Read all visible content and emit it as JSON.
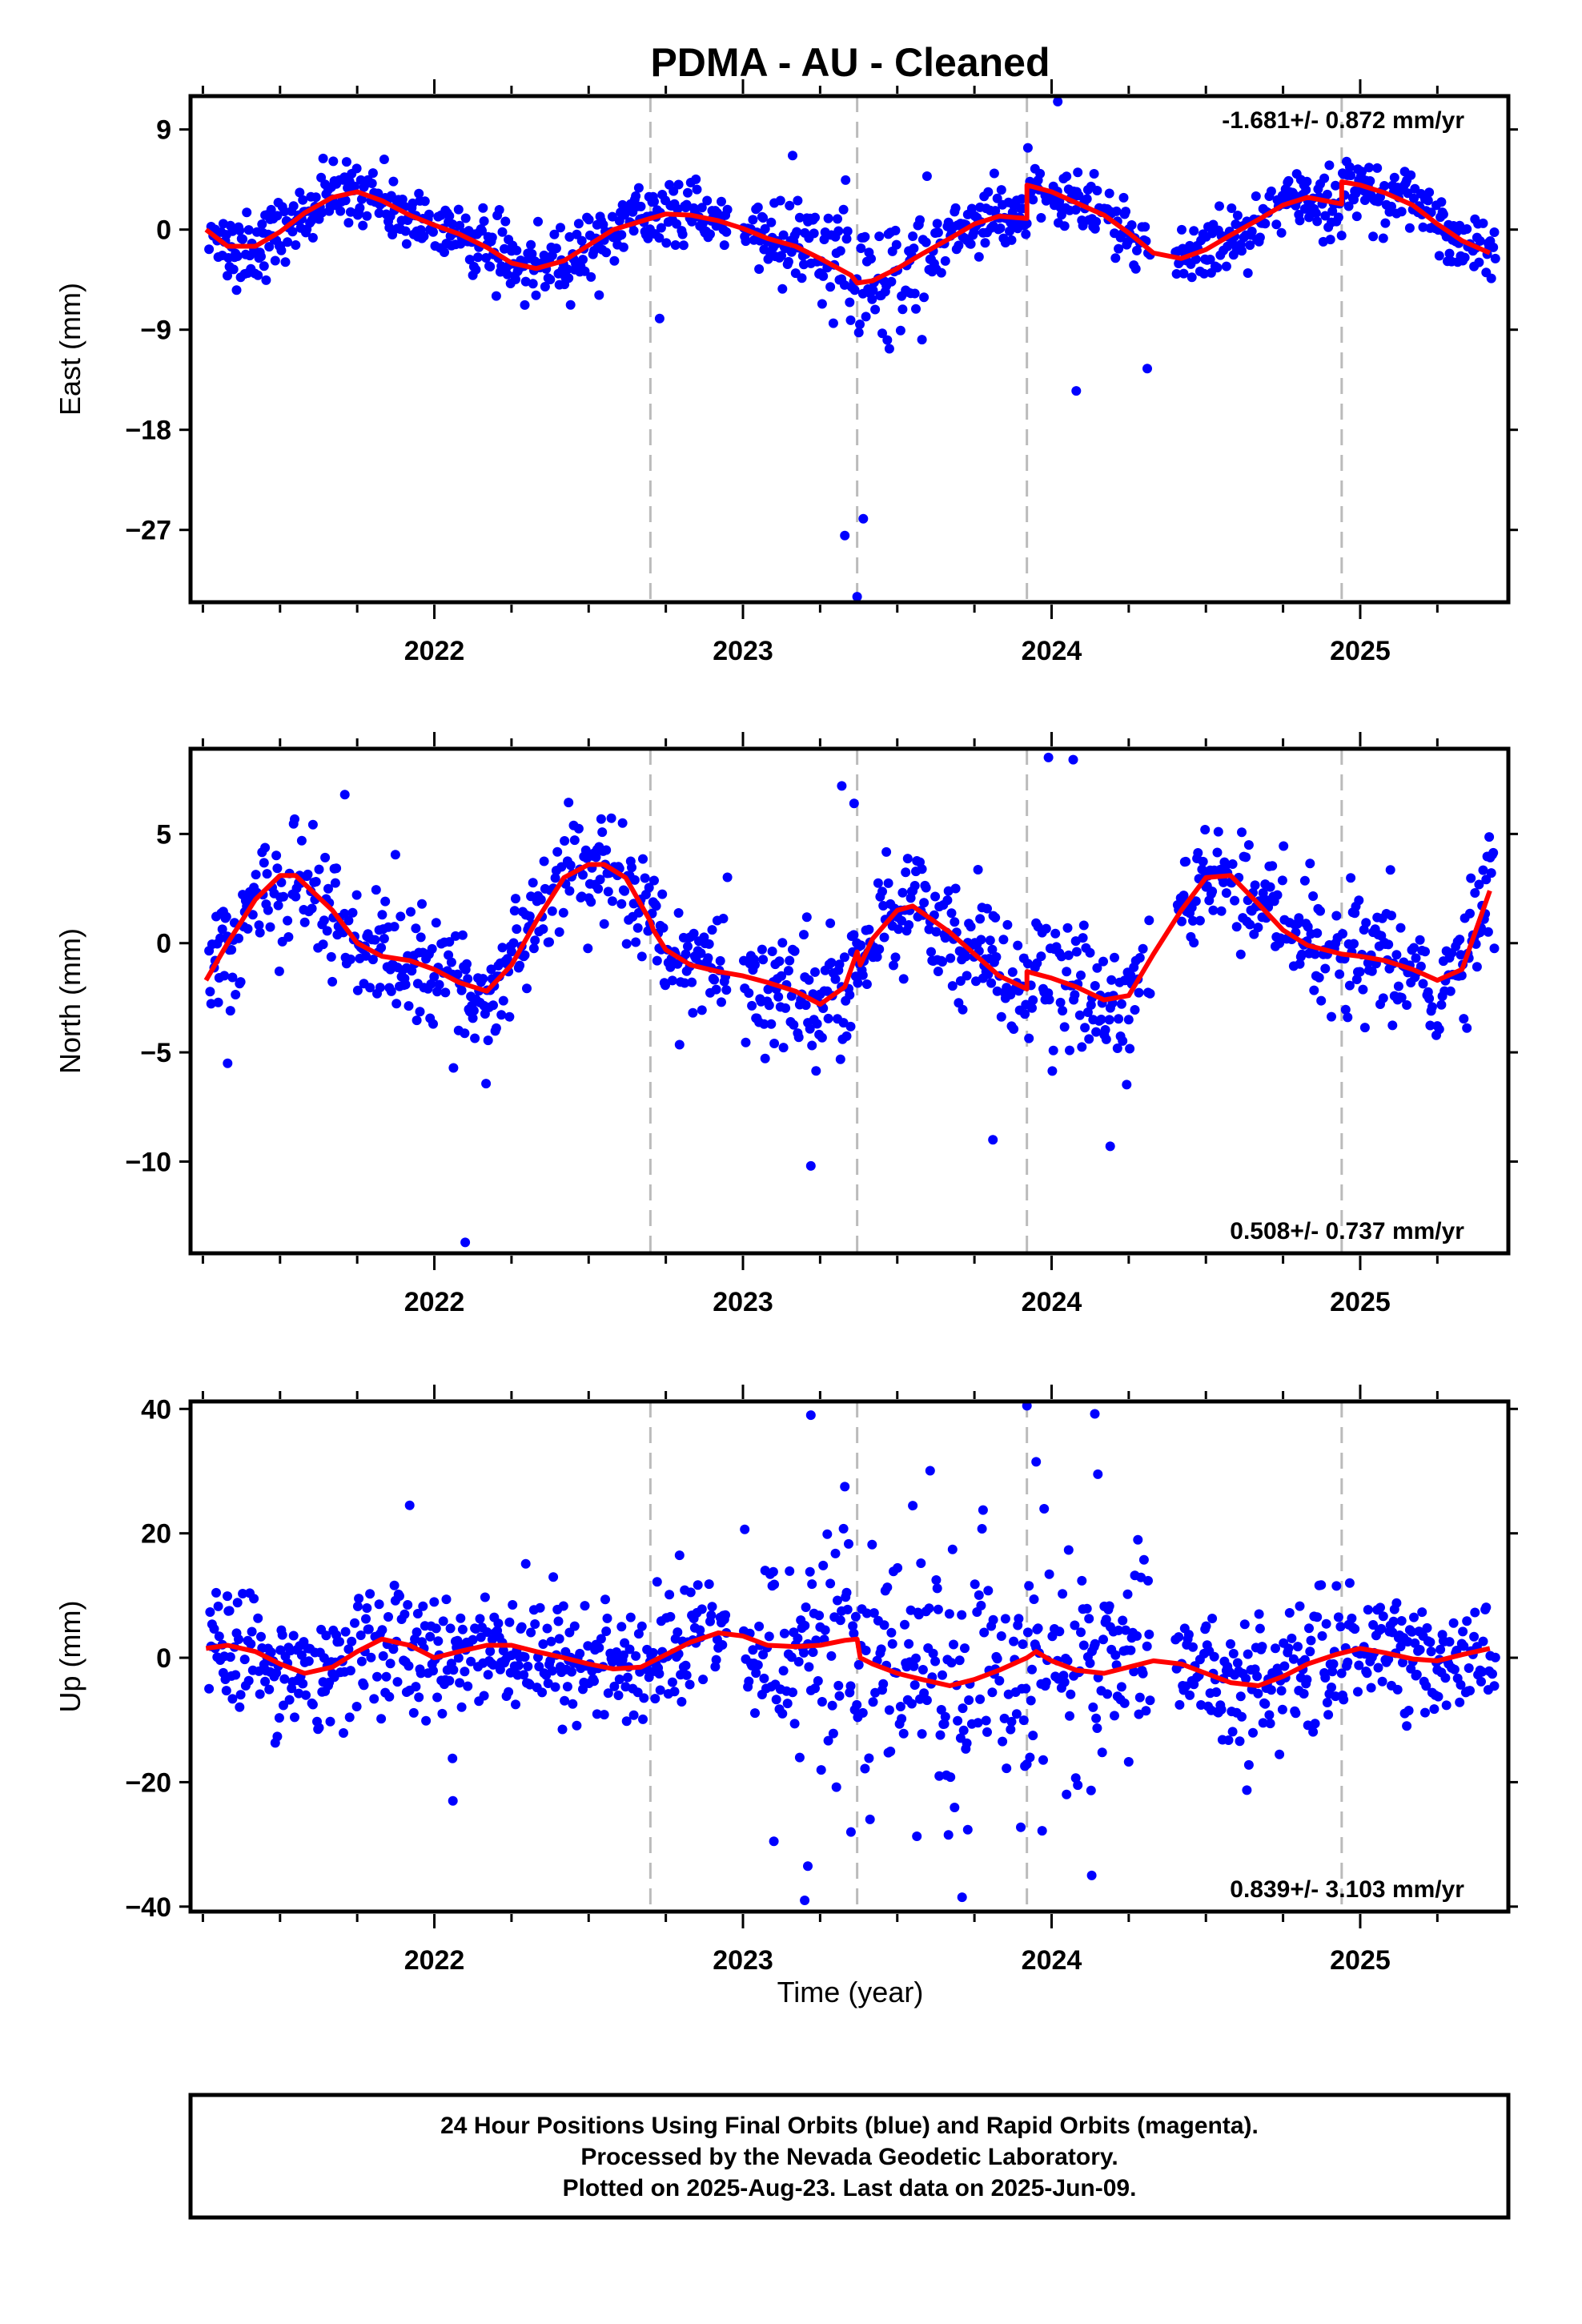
{
  "title": "PDMA  - AU - Cleaned",
  "xlabel": "Time (year)",
  "footer": [
    "24 Hour Positions Using Final Orbits (blue) and Rapid Orbits (magenta).",
    "Processed by the Nevada Geodetic Laboratory.",
    "Plotted on 2025-Aug-23. Last data on 2025-Jun-09."
  ],
  "colors": {
    "points": "#0000ff",
    "model": "#ff0000",
    "breaks": "#bbbbbb",
    "frame": "#000000"
  },
  "chart_data": [
    {
      "type": "scatter",
      "name": "east",
      "ylabel": "East (mm)",
      "rate_text": "-1.681+/- 0.872 mm/yr",
      "rate_position": "top-right",
      "xlim": [
        2021.21,
        2025.48
      ],
      "ylim": [
        -33.5,
        12
      ],
      "yticks": [
        9,
        0,
        -9,
        -18,
        -27
      ],
      "ytick_labels": [
        "9",
        "0",
        "−9",
        "−18",
        "−27"
      ],
      "xticks": [
        2022,
        2023,
        2024,
        2025
      ],
      "xtick_labels": [
        "2022",
        "2023",
        "2024",
        "2025"
      ],
      "equipment_breaks": [
        2022.7,
        2023.37,
        2023.92,
        2024.94
      ],
      "model_x": [
        2021.26,
        2021.33,
        2021.42,
        2021.5,
        2021.58,
        2021.67,
        2021.75,
        2021.83,
        2021.92,
        2022.0,
        2022.08,
        2022.17,
        2022.25,
        2022.33,
        2022.42,
        2022.5,
        2022.58,
        2022.7,
        2022.75,
        2022.83,
        2022.92,
        2023.0,
        2023.08,
        2023.17,
        2023.25,
        2023.35,
        2023.37,
        2023.42,
        2023.5,
        2023.58,
        2023.67,
        2023.75,
        2023.83,
        2023.92,
        2023.92,
        2024.0,
        2024.08,
        2024.17,
        2024.25,
        2024.33,
        2024.42,
        2024.5,
        2024.58,
        2024.67,
        2024.75,
        2024.83,
        2024.94,
        2024.94,
        2025.0,
        2025.08,
        2025.17,
        2025.25,
        2025.33,
        2025.42
      ],
      "model_y": [
        0.0,
        -1.5,
        -1.5,
        -0.2,
        1.5,
        2.9,
        3.4,
        2.6,
        1.3,
        0.4,
        -0.4,
        -1.6,
        -3.0,
        -3.5,
        -2.8,
        -1.4,
        0.0,
        1.0,
        1.4,
        1.3,
        0.8,
        0.1,
        -0.8,
        -1.5,
        -2.6,
        -4.1,
        -4.8,
        -4.6,
        -3.5,
        -2.2,
        -0.8,
        0.5,
        1.2,
        1.0,
        4.0,
        3.4,
        2.4,
        1.3,
        -0.3,
        -2.1,
        -2.6,
        -1.8,
        -0.5,
        0.9,
        2.2,
        2.9,
        2.3,
        4.3,
        4.0,
        3.3,
        2.2,
        0.5,
        -1.0,
        -2.1
      ],
      "anomalies": [
        [
          2023.33,
          -27.5
        ],
        [
          2023.39,
          -26.0
        ],
        [
          2023.37,
          -33.0
        ],
        [
          2024.08,
          -14.5
        ],
        [
          2024.31,
          -12.5
        ],
        [
          2024.02,
          11.5
        ],
        [
          2022.73,
          -8.0
        ]
      ]
    },
    {
      "type": "scatter",
      "name": "north",
      "ylabel": "North (mm)",
      "rate_text": "0.508+/- 0.737 mm/yr",
      "rate_position": "bottom-right",
      "xlim": [
        2021.21,
        2025.48
      ],
      "ylim": [
        -14.2,
        8.9
      ],
      "yticks": [
        5,
        0,
        -5,
        -10
      ],
      "ytick_labels": [
        "5",
        "0",
        "−5",
        "−10"
      ],
      "xticks": [
        2022,
        2023,
        2024,
        2025
      ],
      "xtick_labels": [
        "2022",
        "2023",
        "2024",
        "2025"
      ],
      "equipment_breaks": [
        2022.7,
        2023.37,
        2023.92,
        2024.94
      ],
      "model_x": [
        2021.26,
        2021.33,
        2021.42,
        2021.5,
        2021.55,
        2021.67,
        2021.75,
        2021.83,
        2021.92,
        2022.0,
        2022.08,
        2022.17,
        2022.25,
        2022.33,
        2022.42,
        2022.5,
        2022.55,
        2022.62,
        2022.7,
        2022.71,
        2022.75,
        2022.83,
        2022.92,
        2023.0,
        2023.08,
        2023.17,
        2023.25,
        2023.33,
        2023.37,
        2023.38,
        2023.42,
        2023.5,
        2023.55,
        2023.67,
        2023.75,
        2023.83,
        2023.92,
        2023.92,
        2024.0,
        2024.08,
        2024.17,
        2024.25,
        2024.33,
        2024.42,
        2024.5,
        2024.58,
        2024.67,
        2024.75,
        2024.83,
        2024.94,
        2025.0,
        2025.08,
        2025.17,
        2025.25,
        2025.33,
        2025.42
      ],
      "model_y": [
        -1.7,
        0.0,
        2.0,
        3.1,
        3.1,
        1.5,
        0.0,
        -0.6,
        -0.8,
        -1.2,
        -1.8,
        -2.2,
        -1.0,
        1.0,
        3.0,
        3.6,
        3.6,
        3.0,
        1.0,
        0.6,
        -0.3,
        -1.0,
        -1.3,
        -1.5,
        -1.8,
        -2.2,
        -2.8,
        -2.0,
        -0.4,
        -1.0,
        0.2,
        1.5,
        1.7,
        0.5,
        -0.5,
        -1.5,
        -2.1,
        -1.3,
        -1.6,
        -2.0,
        -2.6,
        -2.4,
        -0.5,
        1.5,
        3.0,
        3.1,
        1.8,
        0.6,
        -0.1,
        -0.5,
        -0.6,
        -0.8,
        -1.2,
        -1.7,
        -1.2,
        2.4
      ],
      "anomalies": [
        [
          2021.33,
          -5.5
        ],
        [
          2022.1,
          -13.7
        ],
        [
          2023.99,
          8.5
        ],
        [
          2024.07,
          8.4
        ],
        [
          2023.32,
          7.2
        ],
        [
          2023.36,
          6.4
        ],
        [
          2023.22,
          -10.2
        ],
        [
          2024.19,
          -9.3
        ],
        [
          2023.81,
          -9.0
        ],
        [
          2021.71,
          6.8
        ]
      ]
    },
    {
      "type": "scatter",
      "name": "up",
      "ylabel": "Up (mm)",
      "rate_text": "0.839+/- 3.103 mm/yr",
      "rate_position": "bottom-right",
      "xlim": [
        2021.21,
        2025.48
      ],
      "ylim": [
        -40.8,
        41.2
      ],
      "yticks": [
        40,
        20,
        0,
        -20,
        -40
      ],
      "ytick_labels": [
        "40",
        "20",
        "0",
        "−20",
        "−40"
      ],
      "xticks": [
        2022,
        2023,
        2024,
        2025
      ],
      "xtick_labels": [
        "2022",
        "2023",
        "2024",
        "2025"
      ],
      "equipment_breaks": [
        2022.7,
        2023.37,
        2023.92,
        2024.94
      ],
      "model_x": [
        2021.26,
        2021.33,
        2021.42,
        2021.5,
        2021.58,
        2021.67,
        2021.75,
        2021.83,
        2021.92,
        2022.0,
        2022.08,
        2022.17,
        2022.25,
        2022.33,
        2022.42,
        2022.5,
        2022.58,
        2022.67,
        2022.75,
        2022.83,
        2022.92,
        2023.0,
        2023.08,
        2023.17,
        2023.25,
        2023.33,
        2023.37,
        2023.38,
        2023.42,
        2023.5,
        2023.58,
        2023.67,
        2023.75,
        2023.83,
        2023.92,
        2023.95,
        2024.0,
        2024.08,
        2024.17,
        2024.25,
        2024.33,
        2024.42,
        2024.5,
        2024.58,
        2024.67,
        2024.75,
        2024.83,
        2024.92,
        2025.0,
        2025.08,
        2025.17,
        2025.25,
        2025.33,
        2025.42
      ],
      "model_y": [
        1.5,
        2.0,
        1.0,
        -1.0,
        -2.5,
        -1.5,
        1.0,
        3.0,
        2.0,
        0.0,
        1.0,
        2.0,
        2.0,
        1.0,
        0.0,
        -1.0,
        -1.8,
        -1.5,
        0.5,
        2.5,
        4.0,
        3.5,
        2.0,
        1.8,
        2.0,
        2.8,
        3.0,
        0.0,
        -1.0,
        -2.5,
        -3.5,
        -4.5,
        -3.5,
        -2.0,
        0.0,
        1.0,
        -0.5,
        -2.0,
        -2.5,
        -1.5,
        -0.5,
        -1.0,
        -2.5,
        -4.0,
        -4.5,
        -3.0,
        -1.0,
        0.5,
        1.5,
        0.8,
        -0.2,
        -0.5,
        0.5,
        1.5
      ],
      "anomalies": [
        [
          2023.22,
          39.0
        ],
        [
          2023.92,
          40.5
        ],
        [
          2024.14,
          39.2
        ],
        [
          2023.95,
          31.5
        ],
        [
          2024.15,
          29.5
        ],
        [
          2022.06,
          -23.0
        ],
        [
          2023.1,
          -29.5
        ],
        [
          2023.2,
          -39.0
        ],
        [
          2023.21,
          -33.5
        ],
        [
          2023.35,
          -28.0
        ],
        [
          2023.71,
          -38.5
        ],
        [
          2024.13,
          -35.0
        ],
        [
          2021.92,
          24.5
        ],
        [
          2023.33,
          27.5
        ]
      ]
    }
  ]
}
